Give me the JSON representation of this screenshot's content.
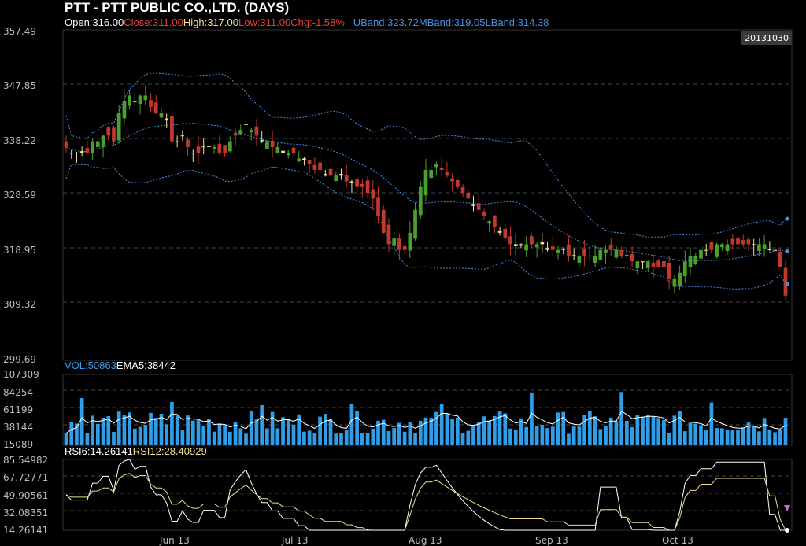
{
  "header": {
    "title": "PTT - PTT PUBLIC CO.,LTD. (DAYS)",
    "open": "Open:316.00",
    "close": "Close:311.00",
    "high": "High:317.00",
    "low": "Low:311.00",
    "chg": "Chg:-1.58%",
    "uband": "UBand:323.72",
    "mband": "MBand:319.05",
    "lband": "LBand:314.38",
    "date": "20131030"
  },
  "volume_panel": {
    "vol": "VOL:50863",
    "ema": "EMA5:38442"
  },
  "rsi_panel": {
    "rsi6": "RSI6:14.26141",
    "rsi12": "RSI12:28.40929"
  },
  "colors": {
    "up": "#4aa02c",
    "down": "#c0392b",
    "doji": "#f3e59a",
    "band": "#4a90e2",
    "volume": "#2f9de8",
    "rsi6": "#ffffff",
    "rsi12": "#f0dc8c",
    "vol_text": "#3d9be9",
    "close_text": "#e0443a",
    "high_text": "#f0dc8c"
  },
  "chart_data": [
    {
      "type": "candlestick",
      "ylim": [
        299.69,
        357.49
      ],
      "ytick_labels": [
        "357.49",
        "347.85",
        "338.22",
        "328.59",
        "318.95",
        "309.32",
        "299.69"
      ],
      "xtick_labels": [
        "Jun 13",
        "Jul 13",
        "Aug 13",
        "Sep 13",
        "Oct 13"
      ],
      "last_close": 311.0,
      "closes": [
        337,
        336,
        336,
        336,
        336,
        338,
        338,
        339,
        339,
        338,
        343,
        345,
        346,
        345,
        346,
        346,
        344,
        343,
        343,
        342,
        338,
        338,
        339,
        337,
        336,
        336,
        337,
        337,
        337,
        336,
        336,
        338,
        339,
        340,
        341,
        340,
        339,
        338,
        338,
        337,
        337,
        336,
        336,
        336,
        335,
        335,
        334,
        333,
        333,
        332,
        332,
        332,
        332,
        331,
        331,
        330,
        330,
        329,
        328,
        325,
        322,
        320,
        321,
        319,
        319,
        322,
        326,
        330,
        333,
        333,
        334,
        333,
        332,
        331,
        330,
        329,
        328,
        327,
        326,
        325,
        324,
        323,
        322,
        321,
        320,
        320,
        320,
        320,
        320,
        320,
        320,
        319,
        319,
        319,
        319,
        318,
        318,
        318,
        318,
        318,
        318,
        319,
        319,
        319,
        319,
        318,
        318,
        317,
        317,
        317,
        317,
        316,
        316,
        316,
        314,
        314,
        315,
        317,
        318,
        318,
        319,
        319,
        319,
        320,
        320,
        320,
        320,
        320,
        320,
        320,
        320,
        320,
        320,
        319,
        319,
        316,
        311
      ]
    },
    {
      "type": "bar",
      "name": "Volume",
      "ylim": [
        15089,
        107309
      ],
      "ytick_labels": [
        "107309",
        "84254",
        "61199",
        "38144",
        "15089"
      ]
    },
    {
      "type": "line",
      "name": "RSI",
      "ylim": [
        14.26141,
        85.54982
      ],
      "ytick_labels": [
        "85.54982",
        "67.72771",
        "49.90561",
        "32.08351",
        "14.26141"
      ]
    }
  ]
}
